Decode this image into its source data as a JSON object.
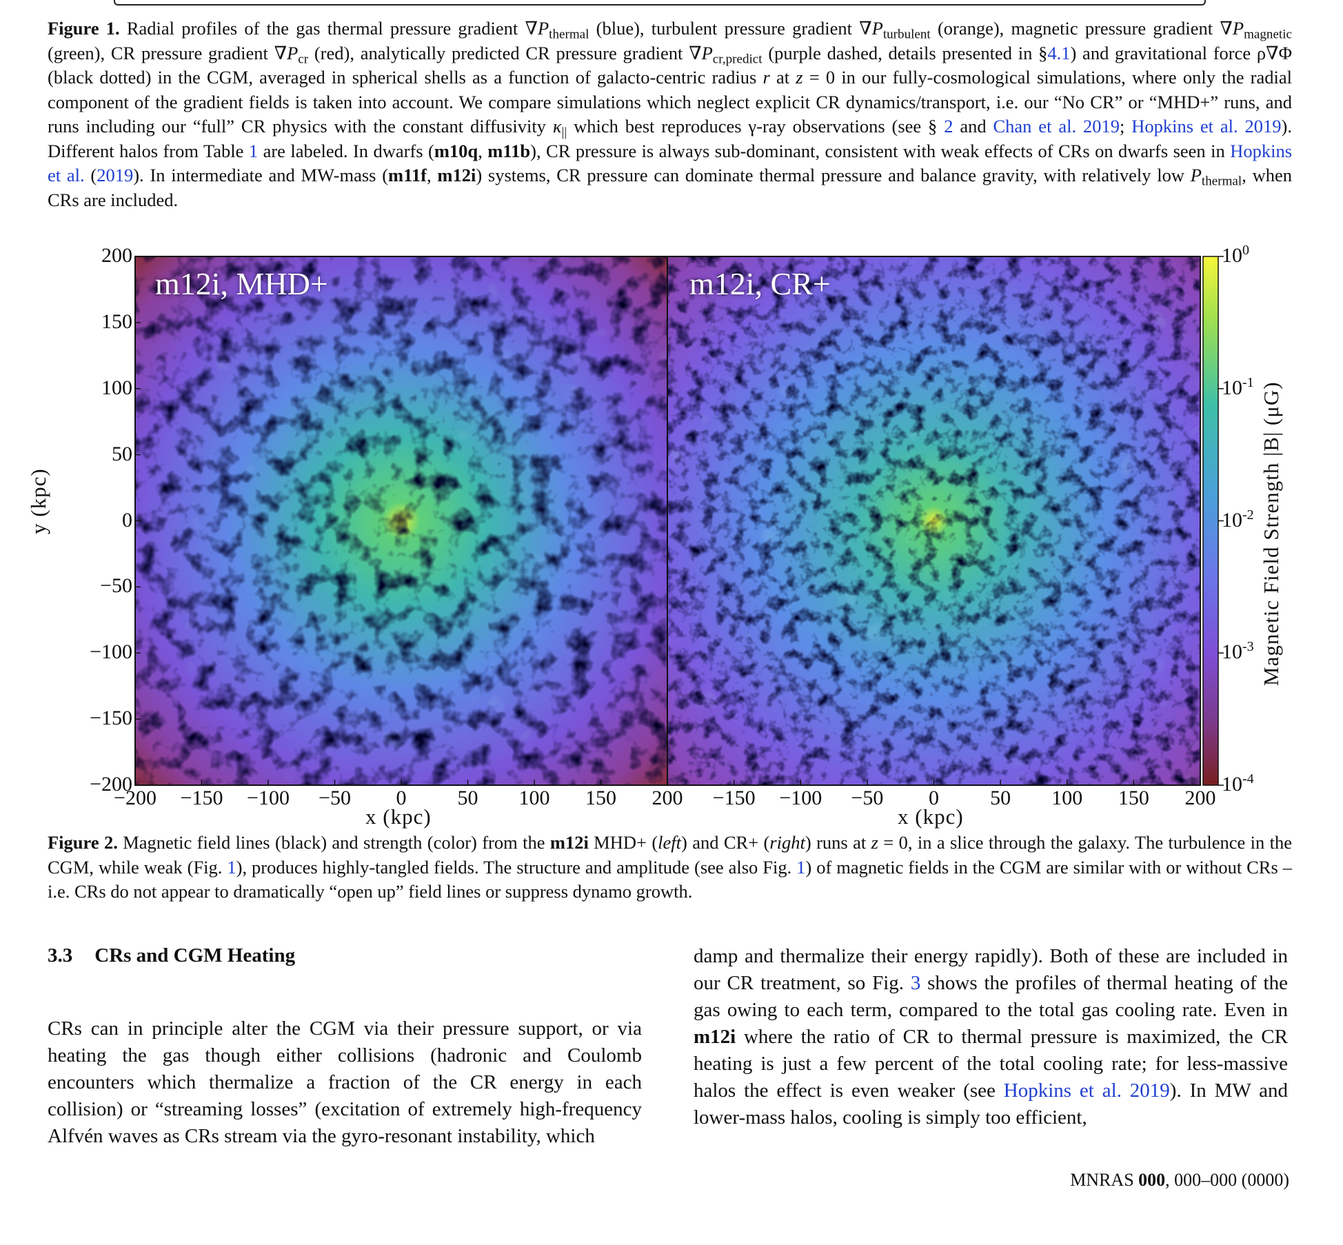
{
  "figure1_caption": {
    "label": "Figure 1.",
    "segments": [
      " Radial profiles of the gas thermal pressure gradient ∇",
      "P",
      "thermal",
      " (blue), turbulent pressure gradient ∇",
      "P",
      "turbulent",
      " (orange), magnetic pressure gradient ∇",
      "P",
      "magnetic",
      " (green), CR pressure gradient ∇",
      "P",
      "cr",
      " (red), analytically predicted CR pressure gradient ∇",
      "P",
      "cr,predict",
      " (purple dashed, details presented in §",
      "4.1",
      ") and gravitational force ρ∇Φ (black dotted) in the CGM, averaged in spherical shells as a function of galacto-centric radius ",
      "r",
      " at ",
      "z",
      " = 0 in our fully-cosmological simulations, where only the radial component of the gradient fields is taken into account. We compare simulations which neglect explicit CR dynamics/transport, i.e. our “No CR” or “MHD+” runs, and runs including our “full” CR physics with the constant diffusivity ",
      "κ",
      "||",
      " which best reproduces γ-ray observations (see § ",
      "2",
      " and ",
      "Chan et al. 2019",
      "; ",
      "Hopkins et al. 2019",
      "). Different halos from Table ",
      "1",
      " are labeled. In dwarfs (",
      "m10q",
      ", ",
      "m11b",
      "), CR pressure is always sub-dominant, consistent with weak effects of CRs on dwarfs seen in ",
      "Hopkins et al.",
      " (",
      "2019",
      "). In intermediate and MW-mass (",
      "m11f",
      ", ",
      "m12i",
      ") systems, CR pressure can dominate thermal pressure and balance gravity, with relatively low ",
      "P",
      "thermal",
      ", when CRs are included."
    ]
  },
  "figure2": {
    "panels": [
      {
        "label": "m12i, MHD+"
      },
      {
        "label": "m12i, CR+"
      }
    ],
    "y_ticks": [
      "200",
      "150",
      "100",
      "50",
      "0",
      "−50",
      "−100",
      "−150",
      "−200"
    ],
    "x_ticks_left": [
      "−200",
      "−150",
      "−100",
      "−50",
      "0",
      "50",
      "100",
      "150",
      "200"
    ],
    "x_ticks_right": [
      "−150",
      "−100",
      "−50",
      "0",
      "50",
      "100",
      "150",
      "200"
    ],
    "xlabel": "x  (kpc)",
    "ylabel": "y  (kpc)",
    "colorbar": {
      "label": "Magnetic Field Strength |B| (μG)",
      "ticks": [
        {
          "base": "10",
          "exp": "0"
        },
        {
          "base": "10",
          "exp": "-1"
        },
        {
          "base": "10",
          "exp": "-2"
        },
        {
          "base": "10",
          "exp": "-3"
        },
        {
          "base": "10",
          "exp": "-4"
        }
      ],
      "scale": "log"
    }
  },
  "figure2_caption": {
    "label": "Figure 2.",
    "segments": [
      " Magnetic field lines (black) and strength (color) from the ",
      "m12i",
      " MHD+ (",
      "left",
      ") and CR+ (",
      "right",
      ") runs at ",
      "z",
      " = 0, in a slice through the galaxy. The turbulence in the CGM, while weak (Fig. ",
      "1",
      "), produces highly-tangled fields. The structure and amplitude (see also Fig. ",
      "1",
      ") of magnetic fields in the CGM are similar with or without CRs – i.e. CRs do not appear to dramatically “open up” field lines or suppress dynamo growth."
    ]
  },
  "section": {
    "number": "3.3",
    "title": "CRs and CGM Heating"
  },
  "left_column": "CRs can in principle alter the CGM via their pressure support, or via heating the gas though either collisions (hadronic and Coulomb encounters which thermalize a fraction of the CR energy in each collision) or “streaming losses” (excitation of extremely high-frequency Alfvén waves as CRs stream via the gyro-resonant instability, which",
  "right_column": {
    "segments": [
      "damp and thermalize their energy rapidly). Both of these are included in our CR treatment, so Fig. ",
      "3",
      " shows the profiles of thermal heating of the gas owing to each term, compared to the total gas cooling rate. Even in ",
      "m12i",
      " where the ratio of CR to thermal pressure is maximized, the CR heating is just a few percent of the total cooling rate; for less-massive halos the effect is even weaker (see ",
      "Hopkins et al. 2019",
      "). In MW and lower-mass halos, cooling is simply too efficient,"
    ]
  },
  "footer": {
    "journal": "MNRAS",
    "volume": "000",
    "pages": ", 000–000 (0000)"
  },
  "colors": {
    "link": "#1f3fd1",
    "text": "#111111"
  }
}
